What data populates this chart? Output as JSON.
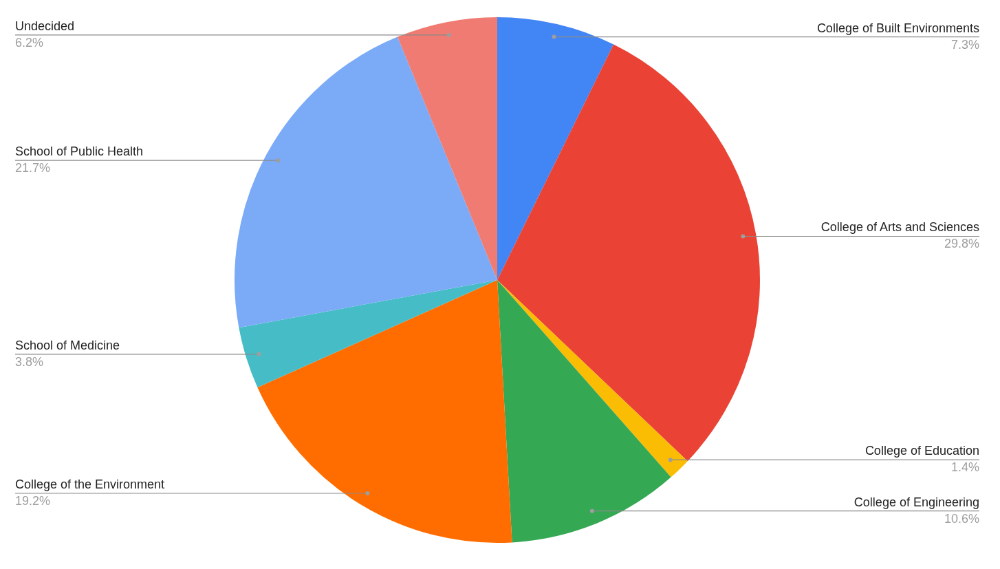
{
  "chart_data": {
    "type": "pie",
    "categories": [
      "College of Built Environments",
      "College of Arts and Sciences",
      "College of Education",
      "College of Engineering",
      "College of the Environment",
      "School of Medicine",
      "School of Public Health",
      "Undecided"
    ],
    "values": [
      7.3,
      29.8,
      1.4,
      10.6,
      19.2,
      3.8,
      21.7,
      6.2
    ],
    "colors": [
      "#4285f4",
      "#ea4335",
      "#fbbc04",
      "#34a853",
      "#ff6d01",
      "#46bdc6",
      "#7baaf7",
      "#f07b72"
    ],
    "value_labels": [
      "7.3%",
      "29.8%",
      "1.4%",
      "10.6%",
      "19.2%",
      "3.8%",
      "21.7%",
      "6.2%"
    ],
    "legend": false
  }
}
